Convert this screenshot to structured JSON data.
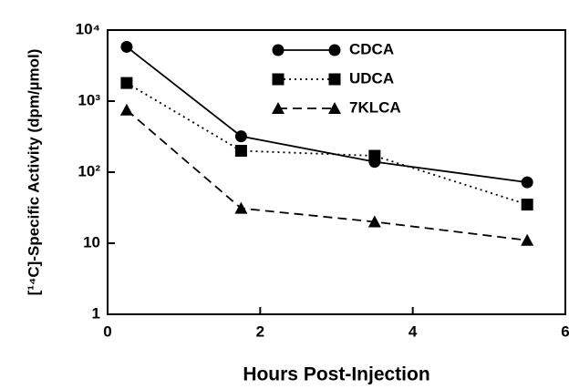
{
  "chart_data": {
    "type": "line",
    "xlabel": "Hours Post-Injection",
    "ylabel": "[¹⁴C]-Specific Activity (dpm/µmol)",
    "x": [
      0.25,
      1.75,
      3.5,
      5.5
    ],
    "series": [
      {
        "name": "CDCA",
        "color": "#000000",
        "marker": "circle",
        "dash": "solid",
        "values": [
          5800,
          320,
          140,
          72
        ]
      },
      {
        "name": "UDCA",
        "color": "#000000",
        "marker": "square",
        "dash": "dotted",
        "values": [
          1800,
          200,
          170,
          35
        ]
      },
      {
        "name": "7KLCA",
        "color": "#000000",
        "marker": "triangle",
        "dash": "dashed",
        "values": [
          750,
          31,
          20,
          11
        ]
      }
    ],
    "xlim": [
      0,
      6
    ],
    "xticks": [
      0,
      2,
      4,
      6
    ],
    "ylim": [
      1,
      10000
    ],
    "log_y": true,
    "yticks": [
      1,
      10,
      {
        "value": 100,
        "label": "10²"
      },
      {
        "value": 1000,
        "label": "10³"
      },
      {
        "value": 10000,
        "label": "10⁴"
      }
    ],
    "legend": "upper center"
  }
}
